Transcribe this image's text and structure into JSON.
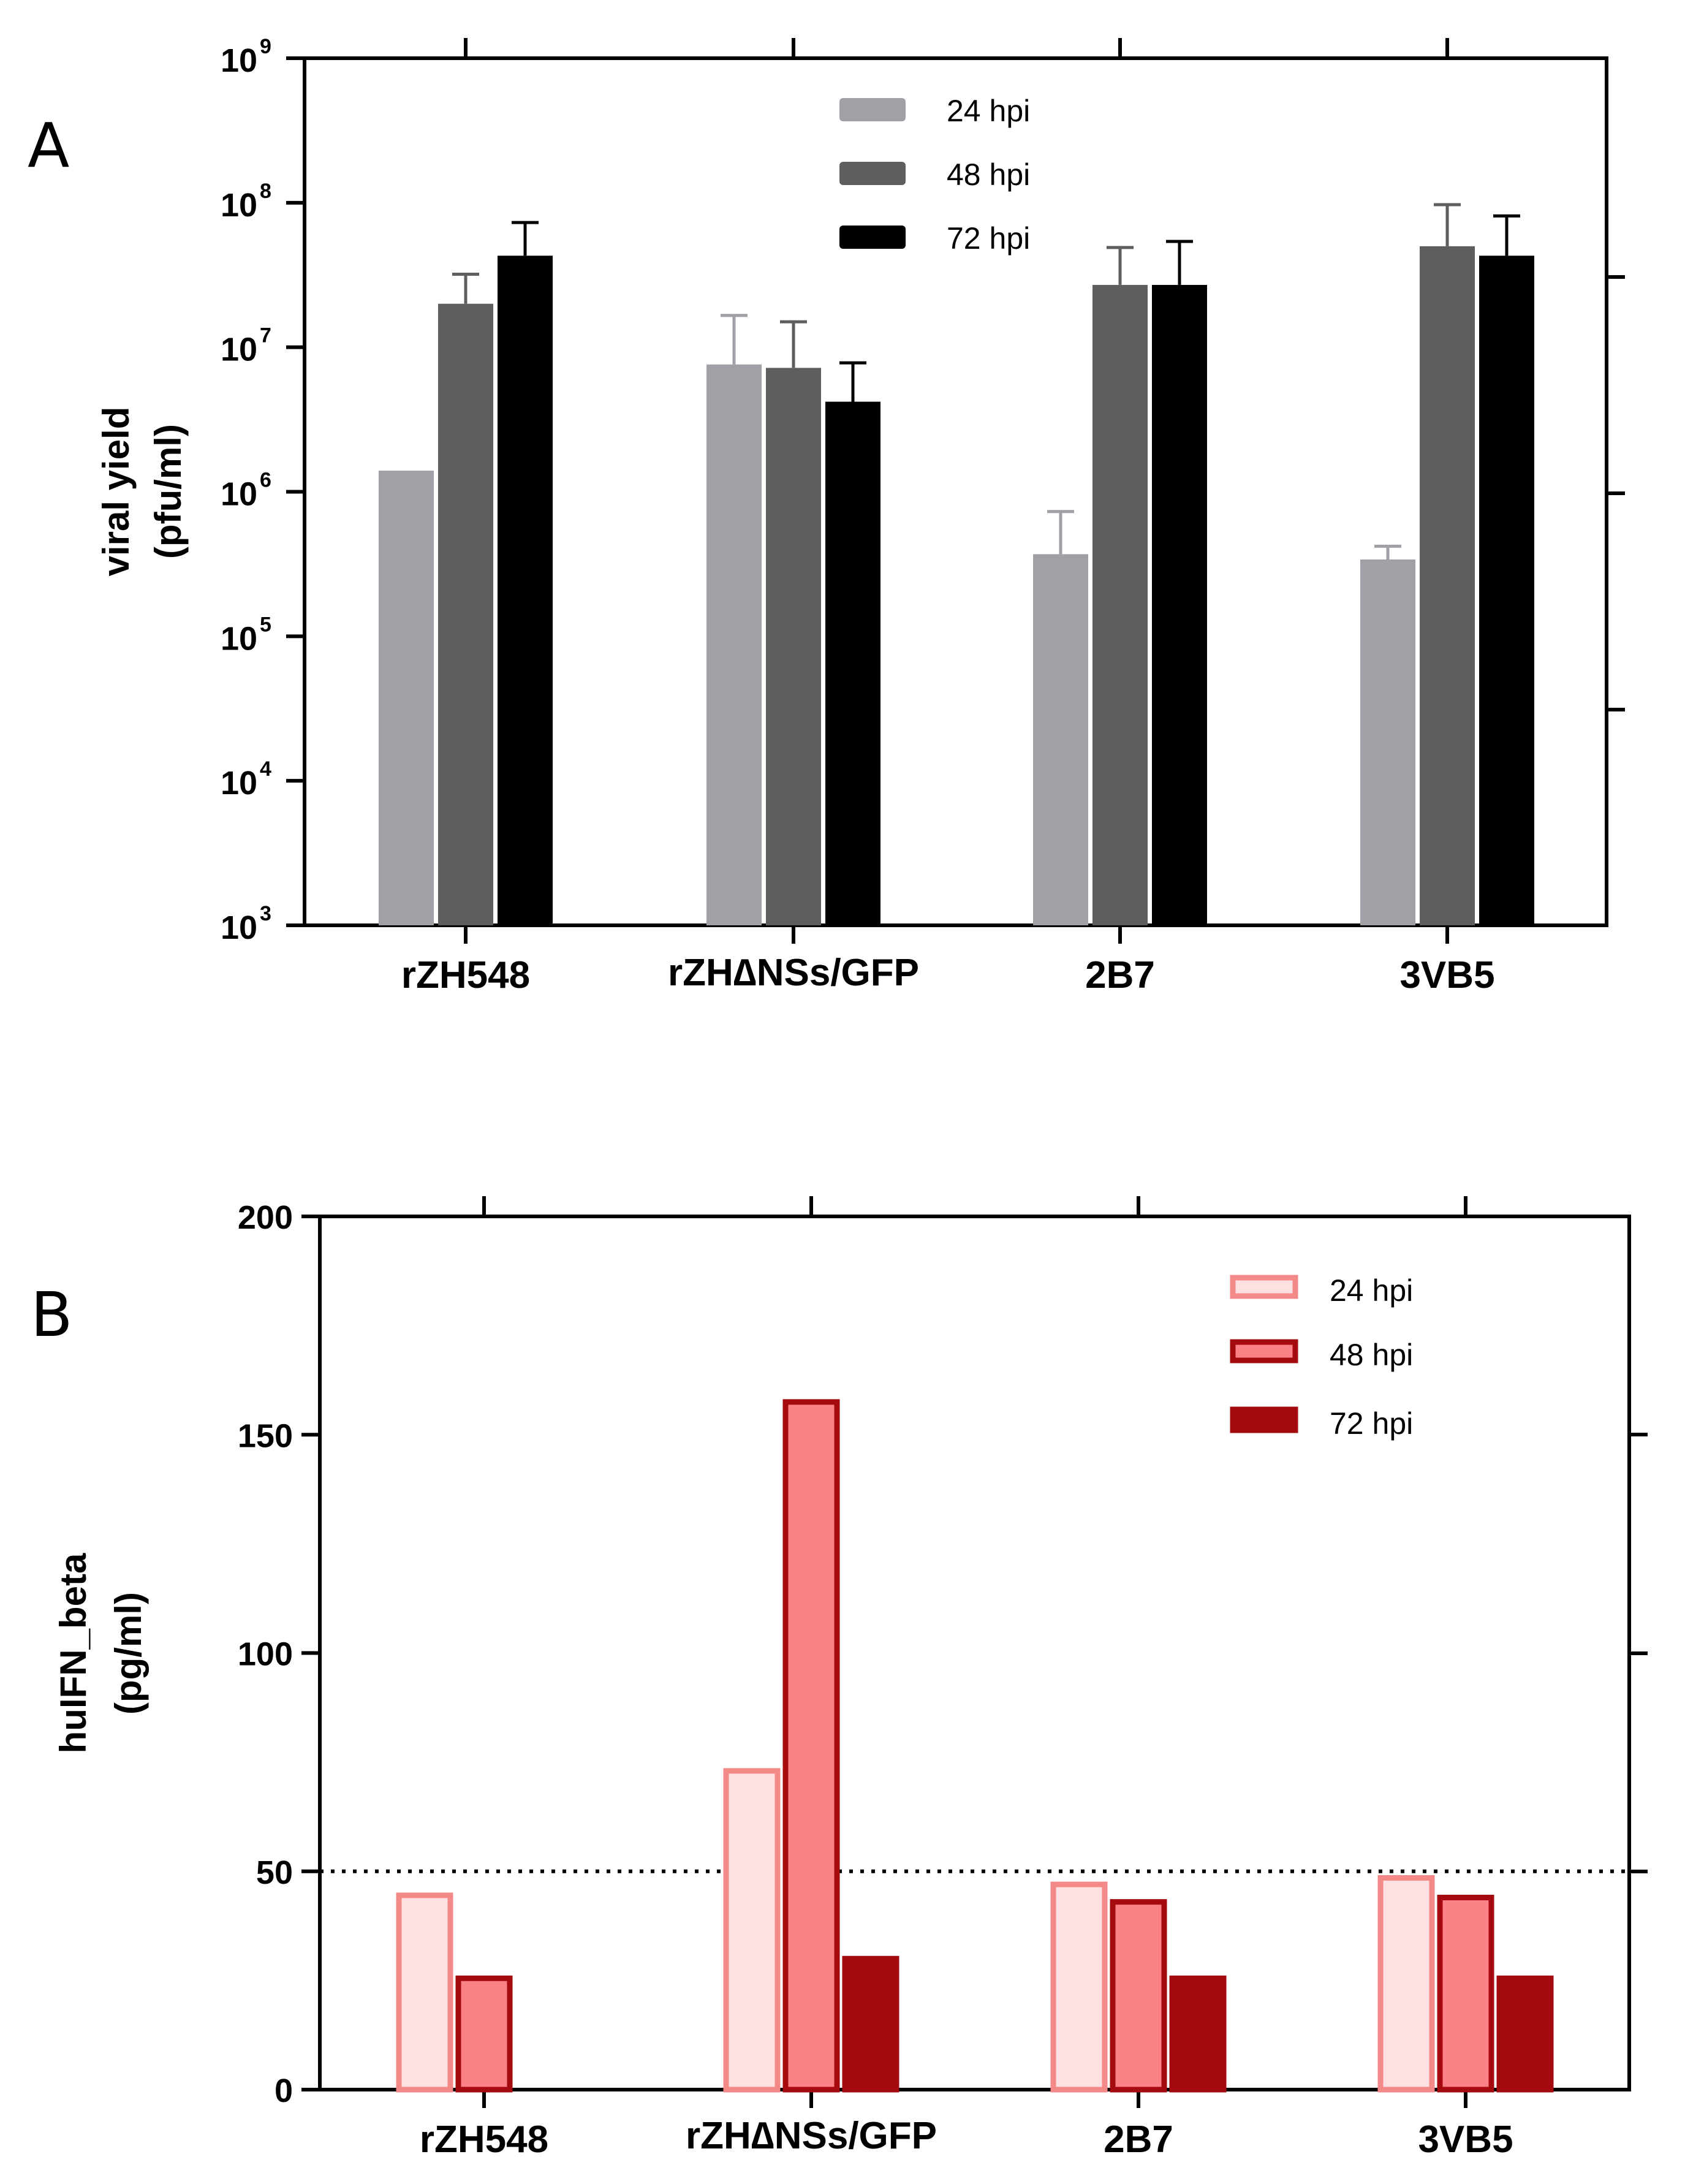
{
  "chart_data": [
    {
      "panel": "A",
      "type": "bar",
      "yscale": "log",
      "ylabel_lines": [
        "viral yield",
        "(pfu/ml)"
      ],
      "yticks": [
        {
          "base": "10",
          "exp": "3"
        },
        {
          "base": "10",
          "exp": "4"
        },
        {
          "base": "10",
          "exp": "5"
        },
        {
          "base": "10",
          "exp": "6"
        },
        {
          "base": "10",
          "exp": "7"
        },
        {
          "base": "10",
          "exp": "8"
        },
        {
          "base": "10",
          "exp": "9"
        }
      ],
      "ylim_log10": [
        3,
        9
      ],
      "categories": [
        "rZH548",
        "rZH∆NSs/GFP",
        "2B7",
        "3VB5"
      ],
      "series": [
        {
          "name": "24 hpi",
          "color": "#a0a0a6",
          "values": [
            1400000,
            7600000,
            370000,
            340000
          ],
          "errors": [
            0,
            9000000,
            360000,
            80000
          ]
        },
        {
          "name": "48 hpi",
          "color": "#5e5e5e",
          "values": [
            20000000,
            7200000,
            27000000,
            50000000
          ],
          "errors": [
            12000000,
            7800000,
            22000000,
            47000000
          ]
        },
        {
          "name": "72 hpi",
          "color": "#000000",
          "values": [
            43000000,
            4200000,
            27000000,
            43000000
          ],
          "errors": [
            30000000,
            3600000,
            27000000,
            38000000
          ]
        }
      ]
    },
    {
      "panel": "B",
      "type": "bar",
      "ylabel_lines": [
        "huIFN_beta",
        "(pg/ml)"
      ],
      "yticks": [
        "0",
        "50",
        "100",
        "150",
        "200"
      ],
      "ylim": [
        0,
        200
      ],
      "threshold": 50,
      "categories": [
        "rZH548",
        "rZH∆NSs/GFP",
        "2B7",
        "3VB5"
      ],
      "series": [
        {
          "name": "24 hpi",
          "fill": "#fde0e2",
          "stroke": "#f48a88",
          "values": [
            44.5,
            73,
            47,
            48.5
          ]
        },
        {
          "name": "48 hpi",
          "fill": "#fa8286",
          "stroke": "#a50a0f",
          "values": [
            25.5,
            157.5,
            43,
            44
          ]
        },
        {
          "name": "72 hpi",
          "fill": "#a50a0f",
          "stroke": "#a50a0f",
          "values": [
            null,
            30,
            25.5,
            25.5
          ]
        }
      ]
    }
  ]
}
